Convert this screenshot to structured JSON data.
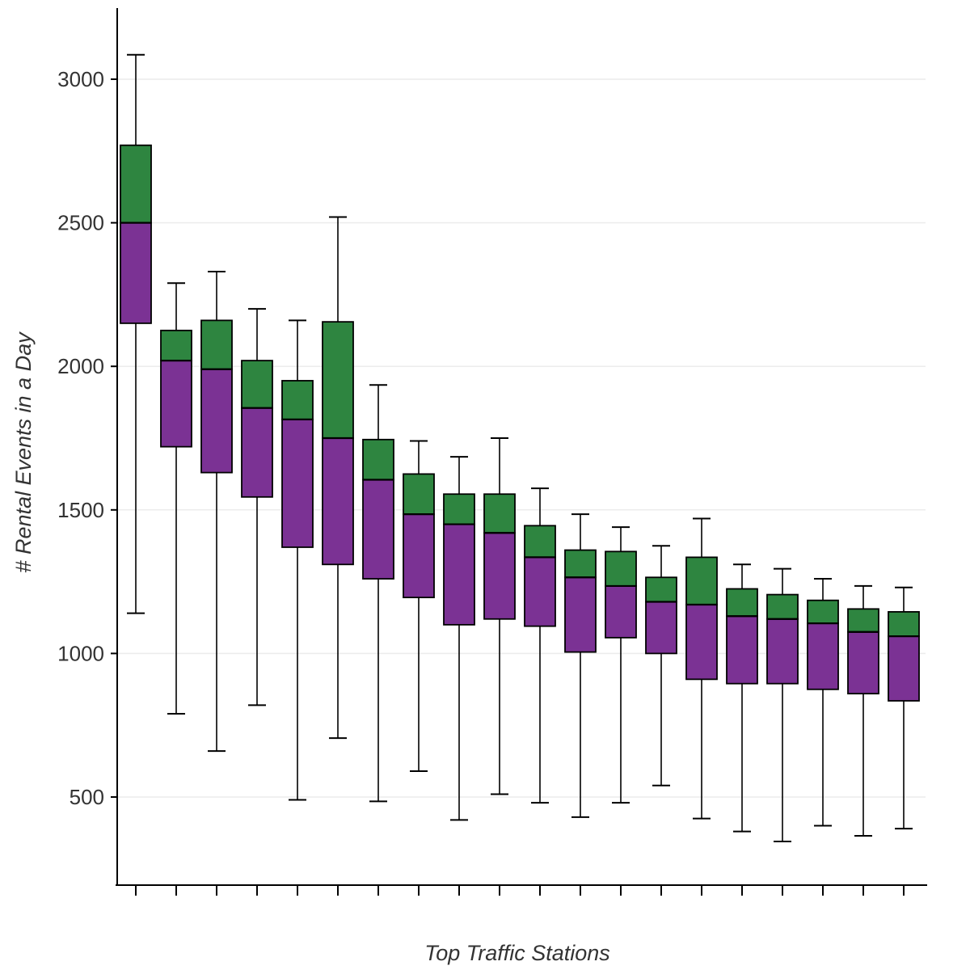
{
  "chart_data": {
    "type": "boxplot",
    "title": "",
    "xlabel": "Top Traffic Stations",
    "ylabel": "# Rental Events in a Day",
    "yticks": [
      500,
      1000,
      1500,
      2000,
      2500,
      3000
    ],
    "ylim": [
      190,
      3250
    ],
    "x_tick_labels": "none (unlabeled ticks, one per box)",
    "grid": "horizontal light lines at each y tick",
    "legend": "none",
    "colors": {
      "box_lower_q1_to_median": "#7b3294",
      "box_upper_median_to_q3": "#2e8540",
      "box_stroke": "#000000",
      "whisker": "#000000",
      "grid": "#ececec",
      "axis": "#000000",
      "text": "#333333",
      "background": "#ffffff"
    },
    "n_boxes": 20,
    "boxes": [
      {
        "low": 1140,
        "q1": 2150,
        "median": 2500,
        "q3": 2770,
        "high": 3085
      },
      {
        "low": 790,
        "q1": 1720,
        "median": 2020,
        "q3": 2125,
        "high": 2290
      },
      {
        "low": 660,
        "q1": 1630,
        "median": 1990,
        "q3": 2160,
        "high": 2330
      },
      {
        "low": 820,
        "q1": 1545,
        "median": 1855,
        "q3": 2020,
        "high": 2200
      },
      {
        "low": 490,
        "q1": 1370,
        "median": 1815,
        "q3": 1950,
        "high": 2160
      },
      {
        "low": 705,
        "q1": 1310,
        "median": 1750,
        "q3": 2155,
        "high": 2520
      },
      {
        "low": 485,
        "q1": 1260,
        "median": 1605,
        "q3": 1745,
        "high": 1935
      },
      {
        "low": 590,
        "q1": 1195,
        "median": 1485,
        "q3": 1625,
        "high": 1740
      },
      {
        "low": 420,
        "q1": 1100,
        "median": 1450,
        "q3": 1555,
        "high": 1685
      },
      {
        "low": 510,
        "q1": 1120,
        "median": 1420,
        "q3": 1555,
        "high": 1750
      },
      {
        "low": 480,
        "q1": 1095,
        "median": 1335,
        "q3": 1445,
        "high": 1575
      },
      {
        "low": 430,
        "q1": 1005,
        "median": 1265,
        "q3": 1360,
        "high": 1485
      },
      {
        "low": 480,
        "q1": 1055,
        "median": 1235,
        "q3": 1355,
        "high": 1440
      },
      {
        "low": 540,
        "q1": 1000,
        "median": 1180,
        "q3": 1265,
        "high": 1375
      },
      {
        "low": 425,
        "q1": 910,
        "median": 1170,
        "q3": 1335,
        "high": 1470
      },
      {
        "low": 380,
        "q1": 895,
        "median": 1130,
        "q3": 1225,
        "high": 1310
      },
      {
        "low": 345,
        "q1": 895,
        "median": 1120,
        "q3": 1205,
        "high": 1295
      },
      {
        "low": 400,
        "q1": 875,
        "median": 1105,
        "q3": 1185,
        "high": 1260
      },
      {
        "low": 365,
        "q1": 860,
        "median": 1075,
        "q3": 1155,
        "high": 1235
      },
      {
        "low": 390,
        "q1": 835,
        "median": 1060,
        "q3": 1145,
        "high": 1230
      }
    ]
  }
}
